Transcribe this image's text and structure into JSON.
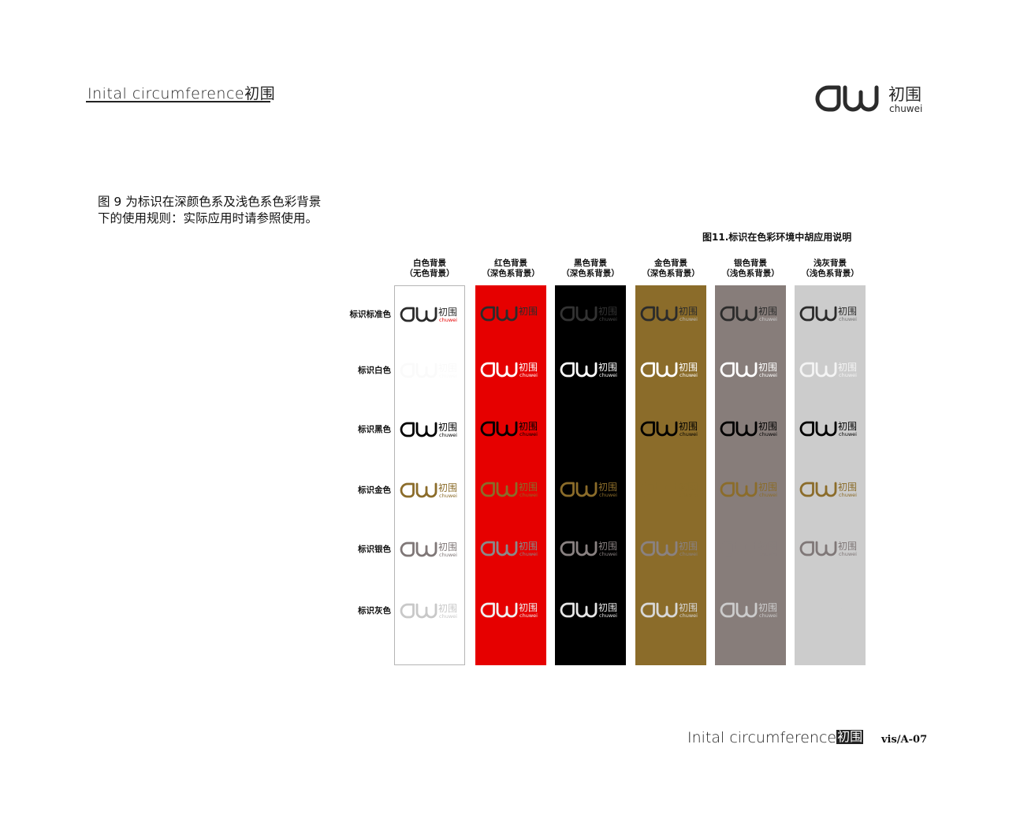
{
  "header": {
    "title": "Inital  circumference",
    "title_cn": "初围"
  },
  "brand": {
    "cn": "初围",
    "en": "chuwei"
  },
  "intro": {
    "line1": "图 9   为标识在深颜色系及浅色系色彩背景",
    "line2": "下的使用规则：实际应用时请参照使用。"
  },
  "figure_caption": "图11.标识在色彩环境中胡应用说明",
  "columns": [
    {
      "line1": "白色背景",
      "line2": "（无色背景）",
      "bg": "#ffffff",
      "border": "#b5b5b5"
    },
    {
      "line1": "红色背景",
      "line2": "（深色系背景）",
      "bg": "#e60000"
    },
    {
      "line1": "黑色背景",
      "line2": "（深色系背景）",
      "bg": "#000000"
    },
    {
      "line1": "金色背景",
      "line2": "（深色系背景）",
      "bg": "#8b6c2a"
    },
    {
      "line1": "银色背景",
      "line2": "（浅色系背景）",
      "bg": "#877d7a"
    },
    {
      "line1": "浅灰背景",
      "line2": "（浅色系背景）",
      "bg": "#cccccc"
    }
  ],
  "rows": [
    {
      "label": "标识标准色",
      "cells": [
        {
          "mark": "#2b2b2b",
          "cn": "#2b2b2b",
          "sub": "#e60000"
        },
        {
          "mark": "#2b2b2b",
          "cn": "#2b2b2b",
          "sub": "#e60000"
        },
        {
          "mark": "#333333",
          "cn": "#333333",
          "sub": "#444444"
        },
        {
          "mark": "#2b2b2b",
          "cn": "#2b2b2b",
          "sub": "#bbbbbb"
        },
        {
          "mark": "#2b2b2b",
          "cn": "#2b2b2b",
          "sub": "#cccccc"
        },
        {
          "mark": "#2b2b2b",
          "cn": "#2b2b2b",
          "sub": "#777777"
        }
      ]
    },
    {
      "label": "标识白色",
      "cells": [
        {
          "mark": "#fafafa",
          "cn": "#fafafa",
          "sub": "#fafafa"
        },
        {
          "mark": "#ffffff",
          "cn": "#ffffff",
          "sub": "#ffffff"
        },
        {
          "mark": "#ffffff",
          "cn": "#ffffff",
          "sub": "#ffffff"
        },
        {
          "mark": "#ffffff",
          "cn": "#ffffff",
          "sub": "#ffffff"
        },
        {
          "mark": "#ffffff",
          "cn": "#ffffff",
          "sub": "#ffffff"
        },
        {
          "mark": "#f4f4f4",
          "cn": "#f4f4f4",
          "sub": "#f4f4f4"
        }
      ]
    },
    {
      "label": "标识黑色",
      "cells": [
        {
          "mark": "#000000",
          "cn": "#000000",
          "sub": "#000000"
        },
        {
          "mark": "#000000",
          "cn": "#000000",
          "sub": "#000000"
        },
        {
          "mark": "#000000",
          "cn": "#000000",
          "sub": "#000000"
        },
        {
          "mark": "#000000",
          "cn": "#000000",
          "sub": "#000000"
        },
        {
          "mark": "#000000",
          "cn": "#000000",
          "sub": "#000000"
        },
        {
          "mark": "#000000",
          "cn": "#000000",
          "sub": "#000000"
        }
      ]
    },
    {
      "label": "标识金色",
      "cells": [
        {
          "mark": "#8b6c2a",
          "cn": "#8b6c2a",
          "sub": "#8b6c2a"
        },
        {
          "mark": "#8b6c2a",
          "cn": "#8b6c2a",
          "sub": "#8b6c2a"
        },
        {
          "mark": "#8b6c2a",
          "cn": "#8b6c2a",
          "sub": "#8b6c2a"
        },
        {
          "mark": "#8b6c2a",
          "cn": "#8b6c2a",
          "sub": "#8b6c2a"
        },
        {
          "mark": "#8b6c2a",
          "cn": "#8b6c2a",
          "sub": "#8b6c2a"
        },
        {
          "mark": "#8b6c2a",
          "cn": "#8b6c2a",
          "sub": "#8b6c2a"
        }
      ]
    },
    {
      "label": "标识银色",
      "cells": [
        {
          "mark": "#7f7777",
          "cn": "#7f7777",
          "sub": "#7f7777"
        },
        {
          "mark": "#8a8a8a",
          "cn": "#8a8a8a",
          "sub": "#8a8a8a"
        },
        {
          "mark": "#8a8282",
          "cn": "#8a8282",
          "sub": "#8a8282"
        },
        {
          "mark": "#8a8282",
          "cn": "#8a8282",
          "sub": "#8a8282"
        },
        {
          "mark": "#877d7a",
          "cn": "#877d7a",
          "sub": "#877d7a"
        },
        {
          "mark": "#7f7777",
          "cn": "#7f7777",
          "sub": "#7f7777"
        }
      ]
    },
    {
      "label": "标识灰色",
      "cells": [
        {
          "mark": "#c8c8c8",
          "cn": "#c8c8c8",
          "sub": "#c8c8c8"
        },
        {
          "mark": "#f0f0f0",
          "cn": "#f0f0f0",
          "sub": "#f0f0f0"
        },
        {
          "mark": "#e6e6e6",
          "cn": "#e6e6e6",
          "sub": "#e6e6e6"
        },
        {
          "mark": "#d8d8d8",
          "cn": "#d8d8d8",
          "sub": "#d8d8d8"
        },
        {
          "mark": "#cccccc",
          "cn": "#cccccc",
          "sub": "#cccccc"
        },
        {
          "mark": "#cccccc",
          "cn": "#cccccc",
          "sub": "#cccccc"
        }
      ]
    }
  ],
  "footer": {
    "title": "Inital  circumference",
    "title_cn": "初围",
    "code": "vis/A-07"
  }
}
